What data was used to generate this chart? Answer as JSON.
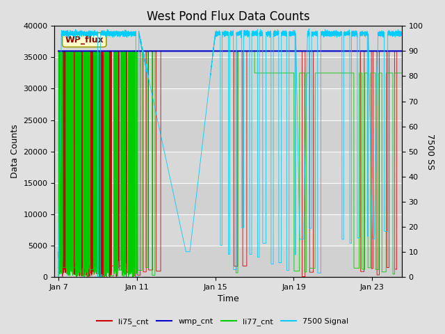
{
  "title": "West Pond Flux Data Counts",
  "xlabel": "Time",
  "ylabel_left": "Data Counts",
  "ylabel_right": "7500 SS",
  "annotation": "WP_flux",
  "ylim_left": [
    0,
    40000
  ],
  "ylim_right": [
    0,
    100
  ],
  "yticks_left": [
    0,
    5000,
    10000,
    15000,
    20000,
    25000,
    30000,
    35000,
    40000
  ],
  "yticks_right": [
    0,
    10,
    20,
    30,
    40,
    50,
    60,
    70,
    80,
    90,
    100
  ],
  "xtick_labels": [
    "Jan 7",
    "Jan 11",
    "Jan 15",
    "Jan 19",
    "Jan 23"
  ],
  "xtick_positions": [
    0,
    4,
    8,
    12,
    16
  ],
  "xlim": [
    -0.2,
    17.5
  ],
  "fig_bg_color": "#e0e0e0",
  "plot_bg_color": "#d8d8d8",
  "legend_entries": [
    "li75_cnt",
    "wmp_cnt",
    "li77_cnt",
    "7500 Signal"
  ],
  "li75_color": "#cc0000",
  "wmp_color": "#0000cc",
  "li77_color": "#00cc00",
  "signal_color": "#00ccff",
  "title_fontsize": 12,
  "axis_label_fontsize": 9,
  "tick_fontsize": 8,
  "wmp_value": 36000,
  "li77_high": 36000,
  "li77_low": 32500,
  "signal_high": 97,
  "signal_low_min": 2,
  "signal_low_max": 10
}
